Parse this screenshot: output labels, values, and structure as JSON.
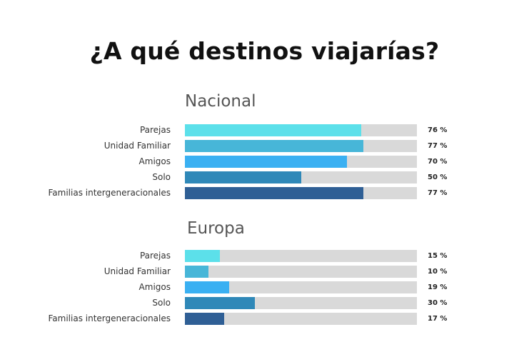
{
  "title": "¿A qué destinos viajarías?",
  "chart_data": [
    {
      "type": "bar",
      "orientation": "horizontal",
      "title": "Nacional",
      "categories": [
        "Parejas",
        "Unidad Familiar",
        "Amigos",
        "Solo",
        "Familias intergeneracionales"
      ],
      "values": [
        76,
        77,
        70,
        50,
        77
      ],
      "value_labels": [
        "76 %",
        "77 %",
        "70 %",
        "50 %",
        "77 %"
      ],
      "colors": [
        "#5ce0ea",
        "#47b6d8",
        "#3ab0f2",
        "#2f88b8",
        "#2f5f95"
      ],
      "track_color": "#d9d9d9",
      "xlim": [
        0,
        100
      ],
      "grid": false,
      "legend": "none"
    },
    {
      "type": "bar",
      "orientation": "horizontal",
      "title": "Europa",
      "categories": [
        "Parejas",
        "Unidad Familiar",
        "Amigos",
        "Solo",
        "Familias intergeneracionales"
      ],
      "values": [
        15,
        10,
        19,
        30,
        17
      ],
      "value_labels": [
        "15 %",
        "10 %",
        "19 %",
        "30 %",
        "17 %"
      ],
      "colors": [
        "#5ce0ea",
        "#47b6d8",
        "#3ab0f2",
        "#2f88b8",
        "#2f5f95"
      ],
      "track_color": "#d9d9d9",
      "xlim": [
        0,
        100
      ],
      "grid": false,
      "legend": "none"
    }
  ]
}
